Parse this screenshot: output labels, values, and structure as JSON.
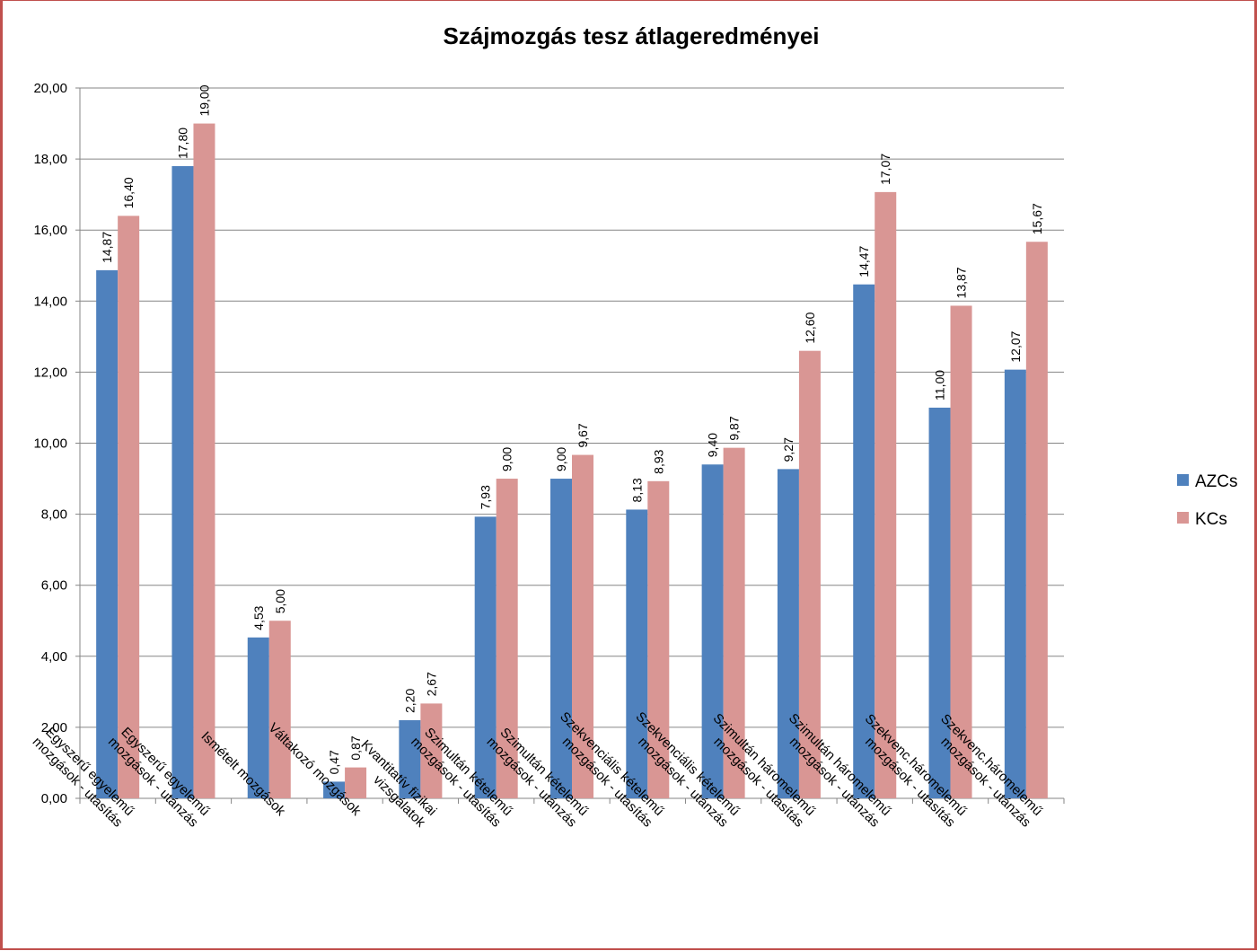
{
  "chart_data": {
    "type": "bar",
    "title": "Szájmozgás tesz átlageredményei",
    "ylim": [
      0,
      20
    ],
    "ytick_step": 2,
    "ytick_labels": [
      "0,00",
      "2,00",
      "4,00",
      "6,00",
      "8,00",
      "10,00",
      "12,00",
      "14,00",
      "16,00",
      "18,00",
      "20,00"
    ],
    "grid": true,
    "legend_position": "right",
    "categories": [
      [
        "Egyszerű egyelemű",
        "mozgások - utasítás"
      ],
      [
        "Egyszerű egyelemű",
        "mozgások - utánzás"
      ],
      [
        "Ismételt mozgások"
      ],
      [
        "Váltakozó mozgások"
      ],
      [
        "Kvantitatív fizikai",
        "vizsgálatok"
      ],
      [
        "Szimultán kételemű",
        "mozgások - utasítás"
      ],
      [
        "Szimultán kételemű",
        "mozgások - utánzás"
      ],
      [
        "Szekvenciális kételemű",
        "mozgások - utasítás"
      ],
      [
        "Szekvenciális kételemű",
        "mozgások - utánzás"
      ],
      [
        "Szimultán háromelemű",
        "mozgások - utasítás"
      ],
      [
        "Szimultán háromelemű",
        "mozgások - utánzás"
      ],
      [
        "Szekvenc.háromelemű",
        "mozgások - utasítás"
      ],
      [
        "Szekvenc.háromelemű",
        "mozgások - utánzás"
      ]
    ],
    "series": [
      {
        "name": "AZCs",
        "color": "#4f81bd",
        "values": [
          14.87,
          17.8,
          4.53,
          0.47,
          2.2,
          7.93,
          9.0,
          8.13,
          9.4,
          9.27,
          14.47,
          11.0,
          12.07
        ],
        "labels": [
          "14,87",
          "17,80",
          "4,53",
          "0,47",
          "2,20",
          "7,93",
          "9,00",
          "8,13",
          "9,40",
          "9,27",
          "14,47",
          "11,00",
          "12,07"
        ]
      },
      {
        "name": "KCs",
        "color": "#d99694",
        "values": [
          16.4,
          19.0,
          5.0,
          0.87,
          2.67,
          9.0,
          9.67,
          8.93,
          9.87,
          12.6,
          17.07,
          13.87,
          15.67
        ],
        "labels": [
          "16,40",
          "19,00",
          "5,00",
          "0,87",
          "2,67",
          "9,00",
          "9,67",
          "8,93",
          "9,87",
          "12,60",
          "17,07",
          "13,87",
          "15,67"
        ]
      }
    ]
  },
  "colors": {
    "frame_border": "#c0504d",
    "gridline": "#868686"
  }
}
